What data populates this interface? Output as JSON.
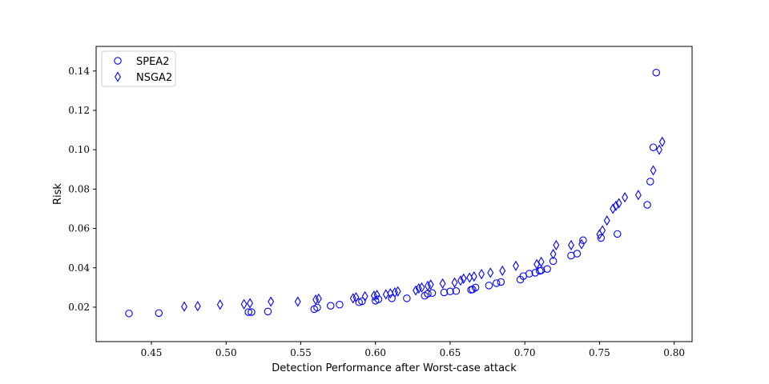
{
  "chart_data": {
    "type": "scatter",
    "title": "",
    "xlabel": "Detection Performance after Worst-case attack",
    "ylabel": "Risk",
    "xlim": [
      0.413,
      0.812
    ],
    "ylim": [
      0.0025,
      0.1525
    ],
    "xticks": [
      0.45,
      0.5,
      0.55,
      0.6,
      0.65,
      0.7,
      0.75,
      0.8
    ],
    "xtick_labels": [
      "0.45",
      "0.50",
      "0.55",
      "0.60",
      "0.65",
      "0.70",
      "0.75",
      "0.80"
    ],
    "yticks": [
      0.02,
      0.04,
      0.06,
      0.08,
      0.1,
      0.12,
      0.14
    ],
    "ytick_labels": [
      "0.02",
      "0.04",
      "0.06",
      "0.08",
      "0.10",
      "0.12",
      "0.14"
    ],
    "grid": false,
    "legend_position": "top-left",
    "color": "#0000ff",
    "series": [
      {
        "name": "SPEA2",
        "marker": "circle",
        "points": [
          [
            0.435,
            0.0168
          ],
          [
            0.455,
            0.017
          ],
          [
            0.515,
            0.0175
          ],
          [
            0.517,
            0.0175
          ],
          [
            0.528,
            0.0178
          ],
          [
            0.559,
            0.019
          ],
          [
            0.561,
            0.0198
          ],
          [
            0.57,
            0.0207
          ],
          [
            0.576,
            0.0213
          ],
          [
            0.589,
            0.0225
          ],
          [
            0.591,
            0.023
          ],
          [
            0.6,
            0.0233
          ],
          [
            0.602,
            0.024
          ],
          [
            0.611,
            0.0245
          ],
          [
            0.621,
            0.0245
          ],
          [
            0.633,
            0.0258
          ],
          [
            0.635,
            0.0268
          ],
          [
            0.638,
            0.0272
          ],
          [
            0.646,
            0.0275
          ],
          [
            0.65,
            0.028
          ],
          [
            0.654,
            0.0282
          ],
          [
            0.664,
            0.0288
          ],
          [
            0.665,
            0.029
          ],
          [
            0.667,
            0.03
          ],
          [
            0.676,
            0.031
          ],
          [
            0.681,
            0.0322
          ],
          [
            0.684,
            0.0328
          ],
          [
            0.697,
            0.034
          ],
          [
            0.699,
            0.0358
          ],
          [
            0.703,
            0.037
          ],
          [
            0.707,
            0.0375
          ],
          [
            0.71,
            0.0384
          ],
          [
            0.711,
            0.0387
          ],
          [
            0.715,
            0.0394
          ],
          [
            0.719,
            0.0434
          ],
          [
            0.731,
            0.0462
          ],
          [
            0.735,
            0.0472
          ],
          [
            0.739,
            0.054
          ],
          [
            0.751,
            0.0552
          ],
          [
            0.762,
            0.0572
          ],
          [
            0.782,
            0.072
          ],
          [
            0.784,
            0.0838
          ],
          [
            0.786,
            0.1012
          ],
          [
            0.788,
            0.1392
          ]
        ]
      },
      {
        "name": "NSGA2",
        "marker": "diamond",
        "points": [
          [
            0.472,
            0.0203
          ],
          [
            0.481,
            0.0205
          ],
          [
            0.496,
            0.0213
          ],
          [
            0.512,
            0.0215
          ],
          [
            0.516,
            0.022
          ],
          [
            0.53,
            0.0228
          ],
          [
            0.548,
            0.0228
          ],
          [
            0.56,
            0.0238
          ],
          [
            0.562,
            0.0243
          ],
          [
            0.585,
            0.0245
          ],
          [
            0.587,
            0.025
          ],
          [
            0.593,
            0.0255
          ],
          [
            0.599,
            0.0258
          ],
          [
            0.601,
            0.0262
          ],
          [
            0.607,
            0.0265
          ],
          [
            0.61,
            0.027
          ],
          [
            0.613,
            0.0275
          ],
          [
            0.615,
            0.028
          ],
          [
            0.627,
            0.0285
          ],
          [
            0.629,
            0.0295
          ],
          [
            0.631,
            0.03
          ],
          [
            0.635,
            0.0308
          ],
          [
            0.637,
            0.0315
          ],
          [
            0.645,
            0.032
          ],
          [
            0.653,
            0.0325
          ],
          [
            0.657,
            0.0335
          ],
          [
            0.659,
            0.0345
          ],
          [
            0.663,
            0.035
          ],
          [
            0.666,
            0.0356
          ],
          [
            0.671,
            0.0368
          ],
          [
            0.677,
            0.0375
          ],
          [
            0.685,
            0.0385
          ],
          [
            0.694,
            0.041
          ],
          [
            0.708,
            0.0418
          ],
          [
            0.711,
            0.043
          ],
          [
            0.719,
            0.047
          ],
          [
            0.721,
            0.0515
          ],
          [
            0.731,
            0.0515
          ],
          [
            0.738,
            0.052
          ],
          [
            0.75,
            0.057
          ],
          [
            0.752,
            0.059
          ],
          [
            0.755,
            0.064
          ],
          [
            0.759,
            0.07
          ],
          [
            0.761,
            0.0715
          ],
          [
            0.763,
            0.0728
          ],
          [
            0.767,
            0.0758
          ],
          [
            0.776,
            0.077
          ],
          [
            0.786,
            0.0895
          ],
          [
            0.79,
            0.1
          ],
          [
            0.792,
            0.104
          ]
        ]
      }
    ]
  }
}
